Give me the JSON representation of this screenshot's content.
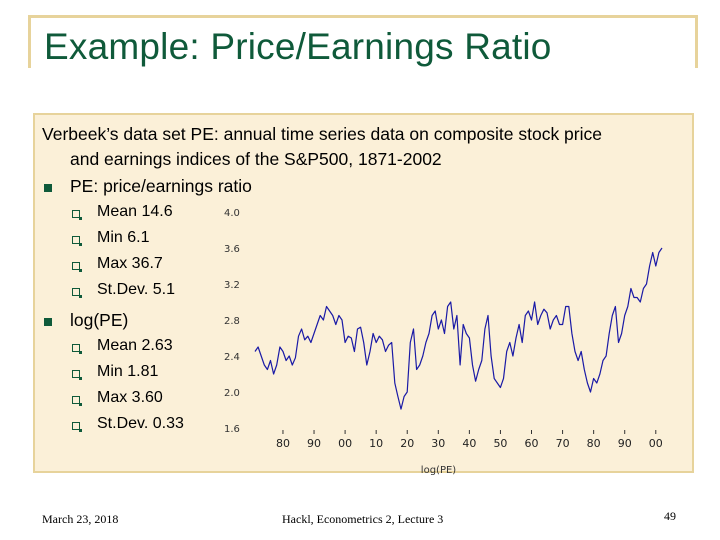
{
  "slide": {
    "title": "Example: Price/Earnings Ratio",
    "intro_line1": "Verbeek’s data set PE: annual time series data on composite stock price",
    "intro_line2": "and earnings indices of the S&P500, 1871-2002",
    "bullet1": "PE: price/earnings ratio",
    "pe_stats": [
      "Mean 14.6",
      "Min 6.1",
      "Max 36.7",
      "St.Dev. 5.1"
    ],
    "bullet2": "log(PE)",
    "logpe_stats": [
      "Mean 2.63",
      "Min 1.81",
      "Max 3.60",
      "St.Dev. 0.33"
    ]
  },
  "footer": {
    "date": "March 23, 2018",
    "course": "Hackl, Econometrics 2, Lecture 3",
    "page": "49"
  },
  "chart_data": {
    "type": "line",
    "xlabel": "log(PE)",
    "ylim": [
      1.6,
      4.0
    ],
    "y_ticks": [
      "1.6",
      "2.0",
      "2.4",
      "2.8",
      "3.2",
      "3.6",
      "4.0"
    ],
    "x_ticks": [
      "80",
      "90",
      "00",
      "10",
      "20",
      "30",
      "40",
      "50",
      "60",
      "70",
      "80",
      "90",
      "00"
    ],
    "x_tick_years": [
      1880,
      1890,
      1900,
      1910,
      1920,
      1930,
      1940,
      1950,
      1960,
      1970,
      1980,
      1990,
      2000
    ],
    "x_range": [
      1871,
      2002
    ],
    "line_color": "#1a1aa6",
    "points": [
      [
        1871,
        2.45
      ],
      [
        1872,
        2.5
      ],
      [
        1873,
        2.4
      ],
      [
        1874,
        2.3
      ],
      [
        1875,
        2.25
      ],
      [
        1876,
        2.35
      ],
      [
        1877,
        2.2
      ],
      [
        1878,
        2.3
      ],
      [
        1879,
        2.5
      ],
      [
        1880,
        2.45
      ],
      [
        1881,
        2.35
      ],
      [
        1882,
        2.4
      ],
      [
        1883,
        2.3
      ],
      [
        1884,
        2.38
      ],
      [
        1885,
        2.62
      ],
      [
        1886,
        2.7
      ],
      [
        1887,
        2.58
      ],
      [
        1888,
        2.62
      ],
      [
        1889,
        2.55
      ],
      [
        1890,
        2.65
      ],
      [
        1891,
        2.75
      ],
      [
        1892,
        2.85
      ],
      [
        1893,
        2.8
      ],
      [
        1894,
        2.95
      ],
      [
        1895,
        2.9
      ],
      [
        1896,
        2.85
      ],
      [
        1897,
        2.75
      ],
      [
        1898,
        2.85
      ],
      [
        1899,
        2.8
      ],
      [
        1900,
        2.55
      ],
      [
        1901,
        2.62
      ],
      [
        1902,
        2.6
      ],
      [
        1903,
        2.45
      ],
      [
        1904,
        2.7
      ],
      [
        1905,
        2.72
      ],
      [
        1906,
        2.55
      ],
      [
        1907,
        2.3
      ],
      [
        1908,
        2.45
      ],
      [
        1909,
        2.65
      ],
      [
        1910,
        2.55
      ],
      [
        1911,
        2.62
      ],
      [
        1912,
        2.58
      ],
      [
        1913,
        2.45
      ],
      [
        1914,
        2.52
      ],
      [
        1915,
        2.55
      ],
      [
        1916,
        2.1
      ],
      [
        1917,
        1.95
      ],
      [
        1918,
        1.81
      ],
      [
        1919,
        1.95
      ],
      [
        1920,
        2.0
      ],
      [
        1921,
        2.55
      ],
      [
        1922,
        2.7
      ],
      [
        1923,
        2.25
      ],
      [
        1924,
        2.3
      ],
      [
        1925,
        2.4
      ],
      [
        1926,
        2.55
      ],
      [
        1927,
        2.65
      ],
      [
        1928,
        2.85
      ],
      [
        1929,
        2.9
      ],
      [
        1930,
        2.7
      ],
      [
        1931,
        2.8
      ],
      [
        1932,
        2.65
      ],
      [
        1933,
        2.95
      ],
      [
        1934,
        3.0
      ],
      [
        1935,
        2.7
      ],
      [
        1936,
        2.85
      ],
      [
        1937,
        2.3
      ],
      [
        1938,
        2.75
      ],
      [
        1939,
        2.65
      ],
      [
        1940,
        2.6
      ],
      [
        1941,
        2.3
      ],
      [
        1942,
        2.12
      ],
      [
        1943,
        2.25
      ],
      [
        1944,
        2.35
      ],
      [
        1945,
        2.7
      ],
      [
        1946,
        2.85
      ],
      [
        1947,
        2.4
      ],
      [
        1948,
        2.15
      ],
      [
        1949,
        2.1
      ],
      [
        1950,
        2.05
      ],
      [
        1951,
        2.15
      ],
      [
        1952,
        2.45
      ],
      [
        1953,
        2.55
      ],
      [
        1954,
        2.4
      ],
      [
        1955,
        2.6
      ],
      [
        1956,
        2.75
      ],
      [
        1957,
        2.55
      ],
      [
        1958,
        2.85
      ],
      [
        1959,
        2.9
      ],
      [
        1960,
        2.8
      ],
      [
        1961,
        3.0
      ],
      [
        1962,
        2.75
      ],
      [
        1963,
        2.85
      ],
      [
        1964,
        2.92
      ],
      [
        1965,
        2.88
      ],
      [
        1966,
        2.7
      ],
      [
        1967,
        2.8
      ],
      [
        1968,
        2.85
      ],
      [
        1969,
        2.75
      ],
      [
        1970,
        2.75
      ],
      [
        1971,
        2.95
      ],
      [
        1972,
        2.95
      ],
      [
        1973,
        2.65
      ],
      [
        1974,
        2.45
      ],
      [
        1975,
        2.35
      ],
      [
        1976,
        2.45
      ],
      [
        1977,
        2.25
      ],
      [
        1978,
        2.1
      ],
      [
        1979,
        2.0
      ],
      [
        1980,
        2.15
      ],
      [
        1981,
        2.1
      ],
      [
        1982,
        2.2
      ],
      [
        1983,
        2.35
      ],
      [
        1984,
        2.4
      ],
      [
        1985,
        2.65
      ],
      [
        1986,
        2.85
      ],
      [
        1987,
        2.95
      ],
      [
        1988,
        2.55
      ],
      [
        1989,
        2.65
      ],
      [
        1990,
        2.85
      ],
      [
        1991,
        2.95
      ],
      [
        1992,
        3.15
      ],
      [
        1993,
        3.05
      ],
      [
        1994,
        3.05
      ],
      [
        1995,
        3.0
      ],
      [
        1996,
        3.15
      ],
      [
        1997,
        3.2
      ],
      [
        1998,
        3.4
      ],
      [
        1999,
        3.55
      ],
      [
        2000,
        3.4
      ],
      [
        2001,
        3.55
      ],
      [
        2002,
        3.6
      ]
    ]
  }
}
